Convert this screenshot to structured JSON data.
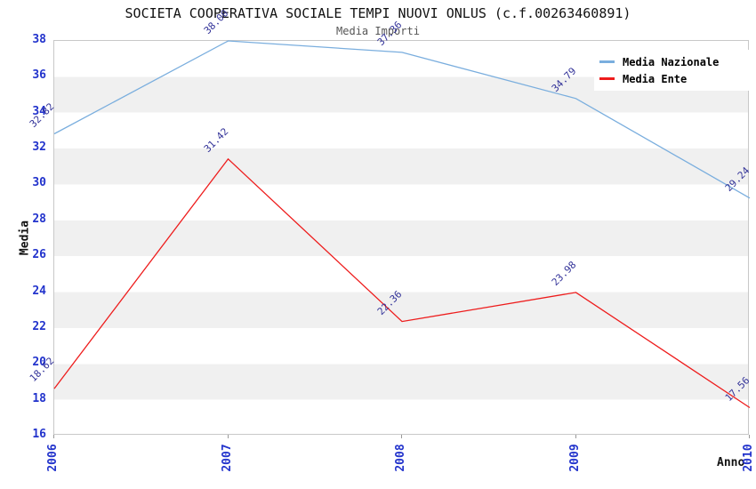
{
  "page": {
    "background": "#ffffff"
  },
  "chart_data": {
    "type": "line",
    "title": "SOCIETA COOPERATIVA SOCIALE TEMPI NUOVI ONLUS (c.f.00263460891)",
    "subtitle": "Media Importi",
    "xlabel": "Anno",
    "ylabel": "Media",
    "x": [
      2006,
      2007,
      2008,
      2009,
      2010
    ],
    "series": [
      {
        "name": "Media Nazionale",
        "color": "#7aaede",
        "values": [
          32.82,
          38.0,
          37.36,
          34.79,
          29.24
        ]
      },
      {
        "name": "Media Ente",
        "color": "#ee1c1c",
        "values": [
          18.62,
          31.42,
          22.36,
          23.98,
          17.56
        ]
      }
    ],
    "ylim": [
      16,
      38
    ],
    "ytick_step": 2,
    "grid": "alternating-horizontal-bands",
    "band_colors": [
      "#ffffff",
      "#f0f0f0"
    ],
    "plot_border_color": "#c8c8c8",
    "axis_tick_color": "#2233cc",
    "data_label_color": "#333399",
    "legend_position": "top-right"
  }
}
